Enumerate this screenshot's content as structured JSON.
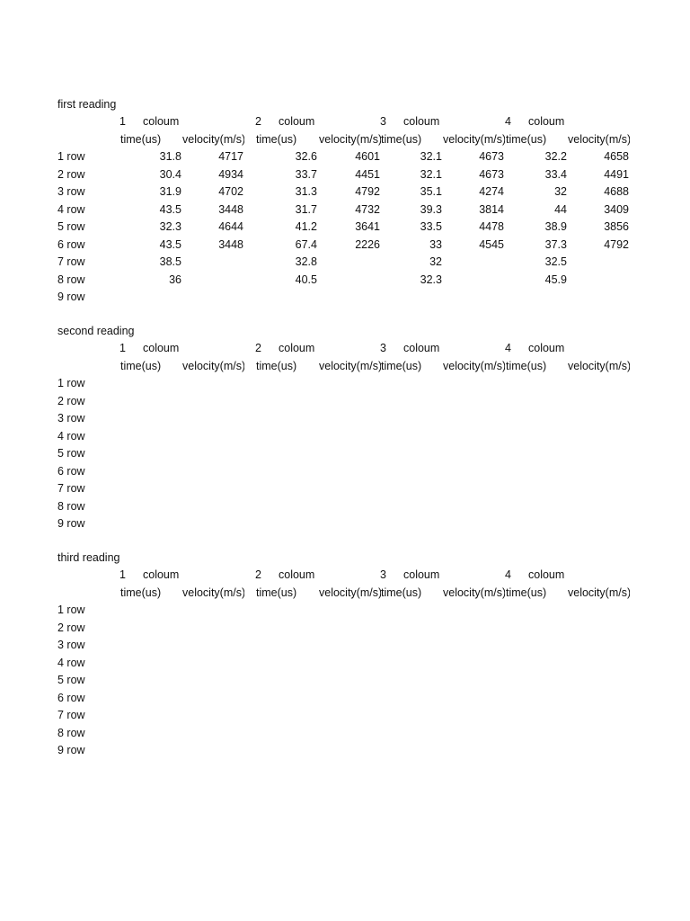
{
  "column_header": {
    "label": "coloum",
    "numbers": [
      "1",
      "2",
      "3",
      "4"
    ]
  },
  "sub_headers": [
    "time(us)",
    "velocity(m/s)",
    "time(us)",
    "velocity(m/s)",
    "time(us)",
    "velocity(m/s)",
    "time(us)",
    "velocity(m/s)"
  ],
  "row_labels": [
    "1 row",
    "2 row",
    "3 row",
    "4 row",
    "5 row",
    "6 row",
    "7 row",
    "8 row",
    "9 row"
  ],
  "sections": [
    {
      "title": "first reading",
      "rows": [
        [
          "31.8",
          "4717",
          "32.6",
          "4601",
          "32.1",
          "4673",
          "32.2",
          "4658"
        ],
        [
          "30.4",
          "4934",
          "33.7",
          "4451",
          "32.1",
          "4673",
          "33.4",
          "4491"
        ],
        [
          "31.9",
          "4702",
          "31.3",
          "4792",
          "35.1",
          "4274",
          "32",
          "4688"
        ],
        [
          "43.5",
          "3448",
          "31.7",
          "4732",
          "39.3",
          "3814",
          "44",
          "3409"
        ],
        [
          "32.3",
          "4644",
          "41.2",
          "3641",
          "33.5",
          "4478",
          "38.9",
          "3856"
        ],
        [
          "43.5",
          "3448",
          "67.4",
          "2226",
          "33",
          "4545",
          "37.3",
          "4792"
        ],
        [
          "38.5",
          "",
          "32.8",
          "",
          "32",
          "",
          "32.5",
          ""
        ],
        [
          "36",
          "",
          "40.5",
          "",
          "32.3",
          "",
          "45.9",
          ""
        ],
        [
          "",
          "",
          "",
          "",
          "",
          "",
          "",
          ""
        ]
      ]
    },
    {
      "title": "second reading",
      "rows": []
    },
    {
      "title": "third reading",
      "rows": []
    }
  ]
}
